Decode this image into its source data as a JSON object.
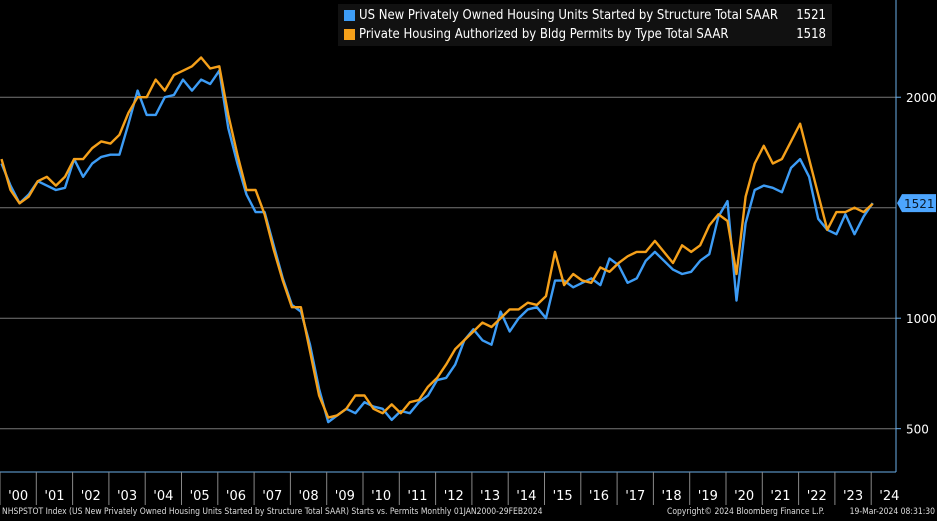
{
  "chart_data": {
    "type": "line",
    "title": "",
    "xlabel": "",
    "ylabel": "",
    "xlim": [
      2000.0,
      2024.17
    ],
    "ylim": [
      304,
      2440
    ],
    "yticks": [
      500,
      1000,
      2000
    ],
    "xticks": [
      "'00",
      "'01",
      "'02",
      "'03",
      "'04",
      "'05",
      "'06",
      "'07",
      "'08",
      "'09",
      "'10",
      "'11",
      "'12",
      "'13",
      "'14",
      "'15",
      "'16",
      "'17",
      "'18",
      "'19",
      "'20",
      "'21",
      "'22",
      "'23",
      "'24"
    ],
    "grid": true,
    "legend_position": "top-right",
    "last_value_label": "1521",
    "series": [
      {
        "name": "US New Privately Owned Housing Units Started by Structure Total SAAR",
        "last": "1521",
        "color": "#3d9cf5",
        "x_start": 2000.0,
        "x_step": 0.25,
        "values": [
          1700,
          1600,
          1520,
          1560,
          1620,
          1600,
          1580,
          1590,
          1720,
          1640,
          1700,
          1730,
          1740,
          1740,
          1880,
          2030,
          1920,
          1920,
          2000,
          2010,
          2080,
          2030,
          2080,
          2060,
          2120,
          1860,
          1700,
          1560,
          1480,
          1480,
          1330,
          1180,
          1060,
          1030,
          880,
          680,
          530,
          560,
          590,
          570,
          620,
          600,
          590,
          540,
          580,
          570,
          620,
          650,
          720,
          730,
          790,
          900,
          950,
          900,
          880,
          1030,
          940,
          1000,
          1040,
          1050,
          1000,
          1170,
          1170,
          1140,
          1160,
          1180,
          1150,
          1270,
          1240,
          1160,
          1180,
          1260,
          1300,
          1260,
          1220,
          1200,
          1210,
          1260,
          1290,
          1460,
          1530,
          1080,
          1430,
          1580,
          1600,
          1590,
          1570,
          1680,
          1720,
          1640,
          1450,
          1400,
          1380,
          1470,
          1380,
          1460,
          1521
        ]
      },
      {
        "name": "Private Housing Authorized by Bldg Permits by Type Total SAAR",
        "last": "1518",
        "color": "#f5a01a",
        "x_start": 2000.0,
        "x_step": 0.25,
        "values": [
          1720,
          1580,
          1520,
          1550,
          1620,
          1640,
          1600,
          1640,
          1720,
          1720,
          1770,
          1800,
          1790,
          1830,
          1930,
          2000,
          2000,
          2080,
          2030,
          2100,
          2120,
          2140,
          2180,
          2130,
          2140,
          1920,
          1740,
          1580,
          1580,
          1470,
          1310,
          1170,
          1050,
          1050,
          850,
          650,
          550,
          560,
          590,
          650,
          650,
          590,
          570,
          610,
          570,
          620,
          630,
          690,
          730,
          790,
          860,
          900,
          940,
          980,
          960,
          1000,
          1040,
          1040,
          1070,
          1060,
          1100,
          1300,
          1150,
          1200,
          1170,
          1160,
          1230,
          1210,
          1250,
          1280,
          1300,
          1300,
          1350,
          1300,
          1250,
          1330,
          1300,
          1330,
          1420,
          1470,
          1440,
          1200,
          1550,
          1700,
          1780,
          1700,
          1720,
          1800,
          1880,
          1720,
          1560,
          1400,
          1480,
          1480,
          1500,
          1480,
          1518
        ]
      }
    ]
  },
  "footer": {
    "description": "NHSPSTOT Index (US New Privately Owned Housing Units Started by Structure Total SAAR) Starts vs. Permits  Monthly 01JAN2000-29FEB2024",
    "copyright": "Copyright© 2024 Bloomberg Finance L.P.",
    "timestamp": "19-Mar-2024 08:31:30"
  }
}
